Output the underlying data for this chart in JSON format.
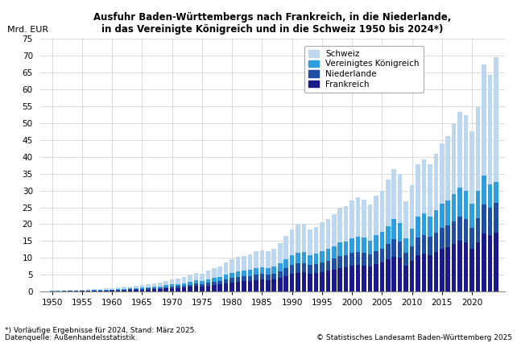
{
  "title_line1": "Ausfuhr Baden-Württembergs nach Frankreich, in die Niederlande,",
  "title_line2": "in das Vereinigte Königreich und in die Schweiz 1950 bis 2024*)",
  "ylabel": "Mrd. EUR",
  "footnote1": "*) Vorläufige Ergebnisse für 2024, Stand: März 2025.",
  "footnote2": "Datenquelle: Außenhandelsstatistik.",
  "footnote3": "© Statistisches Landesamt Baden-Württemberg 2025",
  "ylim": [
    0,
    75
  ],
  "yticks": [
    0,
    5,
    10,
    15,
    20,
    25,
    30,
    35,
    40,
    45,
    50,
    55,
    60,
    65,
    70,
    75
  ],
  "xticks": [
    1950,
    1955,
    1960,
    1965,
    1970,
    1975,
    1980,
    1985,
    1990,
    1995,
    2000,
    2005,
    2010,
    2015,
    2020
  ],
  "color_schweiz": "#BDD7EE",
  "color_uk": "#2E9EE0",
  "color_niederlande": "#1F4EA6",
  "color_frankreich": "#1A1A8C",
  "years": [
    1950,
    1951,
    1952,
    1953,
    1954,
    1955,
    1956,
    1957,
    1958,
    1959,
    1960,
    1961,
    1962,
    1963,
    1964,
    1965,
    1966,
    1967,
    1968,
    1969,
    1970,
    1971,
    1972,
    1973,
    1974,
    1975,
    1976,
    1977,
    1978,
    1979,
    1980,
    1981,
    1982,
    1983,
    1984,
    1985,
    1986,
    1987,
    1988,
    1989,
    1990,
    1991,
    1992,
    1993,
    1994,
    1995,
    1996,
    1997,
    1998,
    1999,
    2000,
    2001,
    2002,
    2003,
    2004,
    2005,
    2006,
    2007,
    2008,
    2009,
    2010,
    2011,
    2012,
    2013,
    2014,
    2015,
    2016,
    2017,
    2018,
    2019,
    2020,
    2021,
    2022,
    2023,
    2024
  ],
  "frankreich": [
    0.08,
    0.09,
    0.1,
    0.11,
    0.13,
    0.16,
    0.19,
    0.22,
    0.22,
    0.25,
    0.3,
    0.34,
    0.38,
    0.43,
    0.5,
    0.57,
    0.63,
    0.66,
    0.75,
    0.89,
    1.02,
    1.11,
    1.2,
    1.38,
    1.6,
    1.52,
    1.79,
    1.96,
    2.14,
    2.5,
    2.77,
    2.96,
    3.05,
    3.15,
    3.42,
    3.51,
    3.43,
    3.62,
    4.07,
    4.69,
    5.24,
    5.6,
    5.69,
    5.24,
    5.42,
    5.87,
    6.14,
    6.52,
    7.07,
    7.25,
    7.69,
    7.97,
    7.77,
    7.41,
    8.14,
    8.6,
    9.51,
    10.43,
    9.96,
    7.69,
    9.07,
    10.87,
    11.32,
    10.88,
    11.79,
    12.71,
    13.18,
    14.08,
    15.02,
    14.52,
    12.73,
    14.55,
    17.24,
    16.8,
    17.5
  ],
  "niederlande": [
    0.04,
    0.05,
    0.06,
    0.06,
    0.07,
    0.08,
    0.09,
    0.11,
    0.11,
    0.13,
    0.15,
    0.17,
    0.19,
    0.22,
    0.25,
    0.28,
    0.31,
    0.32,
    0.36,
    0.43,
    0.49,
    0.53,
    0.58,
    0.66,
    0.77,
    0.72,
    0.85,
    0.94,
    1.02,
    1.18,
    1.32,
    1.42,
    1.47,
    1.52,
    1.66,
    1.71,
    1.66,
    1.76,
    1.99,
    2.29,
    2.57,
    2.76,
    2.81,
    2.58,
    2.67,
    2.87,
    3.0,
    3.2,
    3.45,
    3.55,
    3.74,
    3.88,
    3.79,
    3.6,
    3.95,
    4.18,
    4.62,
    5.09,
    4.85,
    3.74,
    4.42,
    5.28,
    5.53,
    5.29,
    5.73,
    6.16,
    6.36,
    6.84,
    7.32,
    7.08,
    6.17,
    7.12,
    8.5,
    8.2,
    8.8
  ],
  "uk": [
    0.04,
    0.05,
    0.06,
    0.07,
    0.08,
    0.09,
    0.11,
    0.13,
    0.13,
    0.15,
    0.18,
    0.2,
    0.22,
    0.26,
    0.29,
    0.33,
    0.36,
    0.38,
    0.43,
    0.51,
    0.59,
    0.63,
    0.68,
    0.79,
    0.92,
    0.86,
    1.01,
    1.11,
    1.2,
    1.4,
    1.55,
    1.66,
    1.71,
    1.77,
    1.94,
    2.0,
    1.94,
    2.06,
    2.33,
    2.68,
    3.0,
    3.23,
    3.29,
    3.02,
    3.13,
    3.35,
    3.51,
    3.74,
    4.03,
    4.14,
    4.36,
    4.53,
    4.41,
    4.2,
    4.59,
    4.86,
    5.37,
    5.93,
    5.65,
    4.36,
    5.15,
    6.15,
    6.44,
    6.16,
    6.66,
    7.17,
    7.4,
    7.95,
    8.51,
    8.23,
    7.18,
    8.29,
    8.76,
    6.8,
    6.2
  ],
  "schweiz": [
    0.1,
    0.12,
    0.14,
    0.16,
    0.19,
    0.22,
    0.26,
    0.3,
    0.32,
    0.37,
    0.45,
    0.5,
    0.57,
    0.64,
    0.75,
    0.84,
    0.93,
    0.97,
    1.1,
    1.3,
    1.5,
    1.63,
    1.76,
    2.03,
    2.36,
    2.21,
    2.6,
    2.85,
    3.11,
    3.62,
    3.98,
    4.27,
    4.39,
    4.53,
    4.94,
    5.07,
    4.97,
    5.26,
    5.94,
    6.85,
    7.65,
    8.22,
    8.38,
    7.69,
    7.95,
    8.55,
    8.93,
    9.5,
    10.25,
    10.52,
    11.17,
    11.54,
    11.24,
    10.71,
    11.72,
    12.38,
    13.7,
    15.02,
    14.36,
    11.08,
    13.04,
    15.49,
    16.06,
    15.47,
    16.68,
    17.9,
    19.14,
    20.83,
    22.51,
    22.58,
    21.44,
    24.8,
    33.0,
    32.5,
    37.0
  ]
}
